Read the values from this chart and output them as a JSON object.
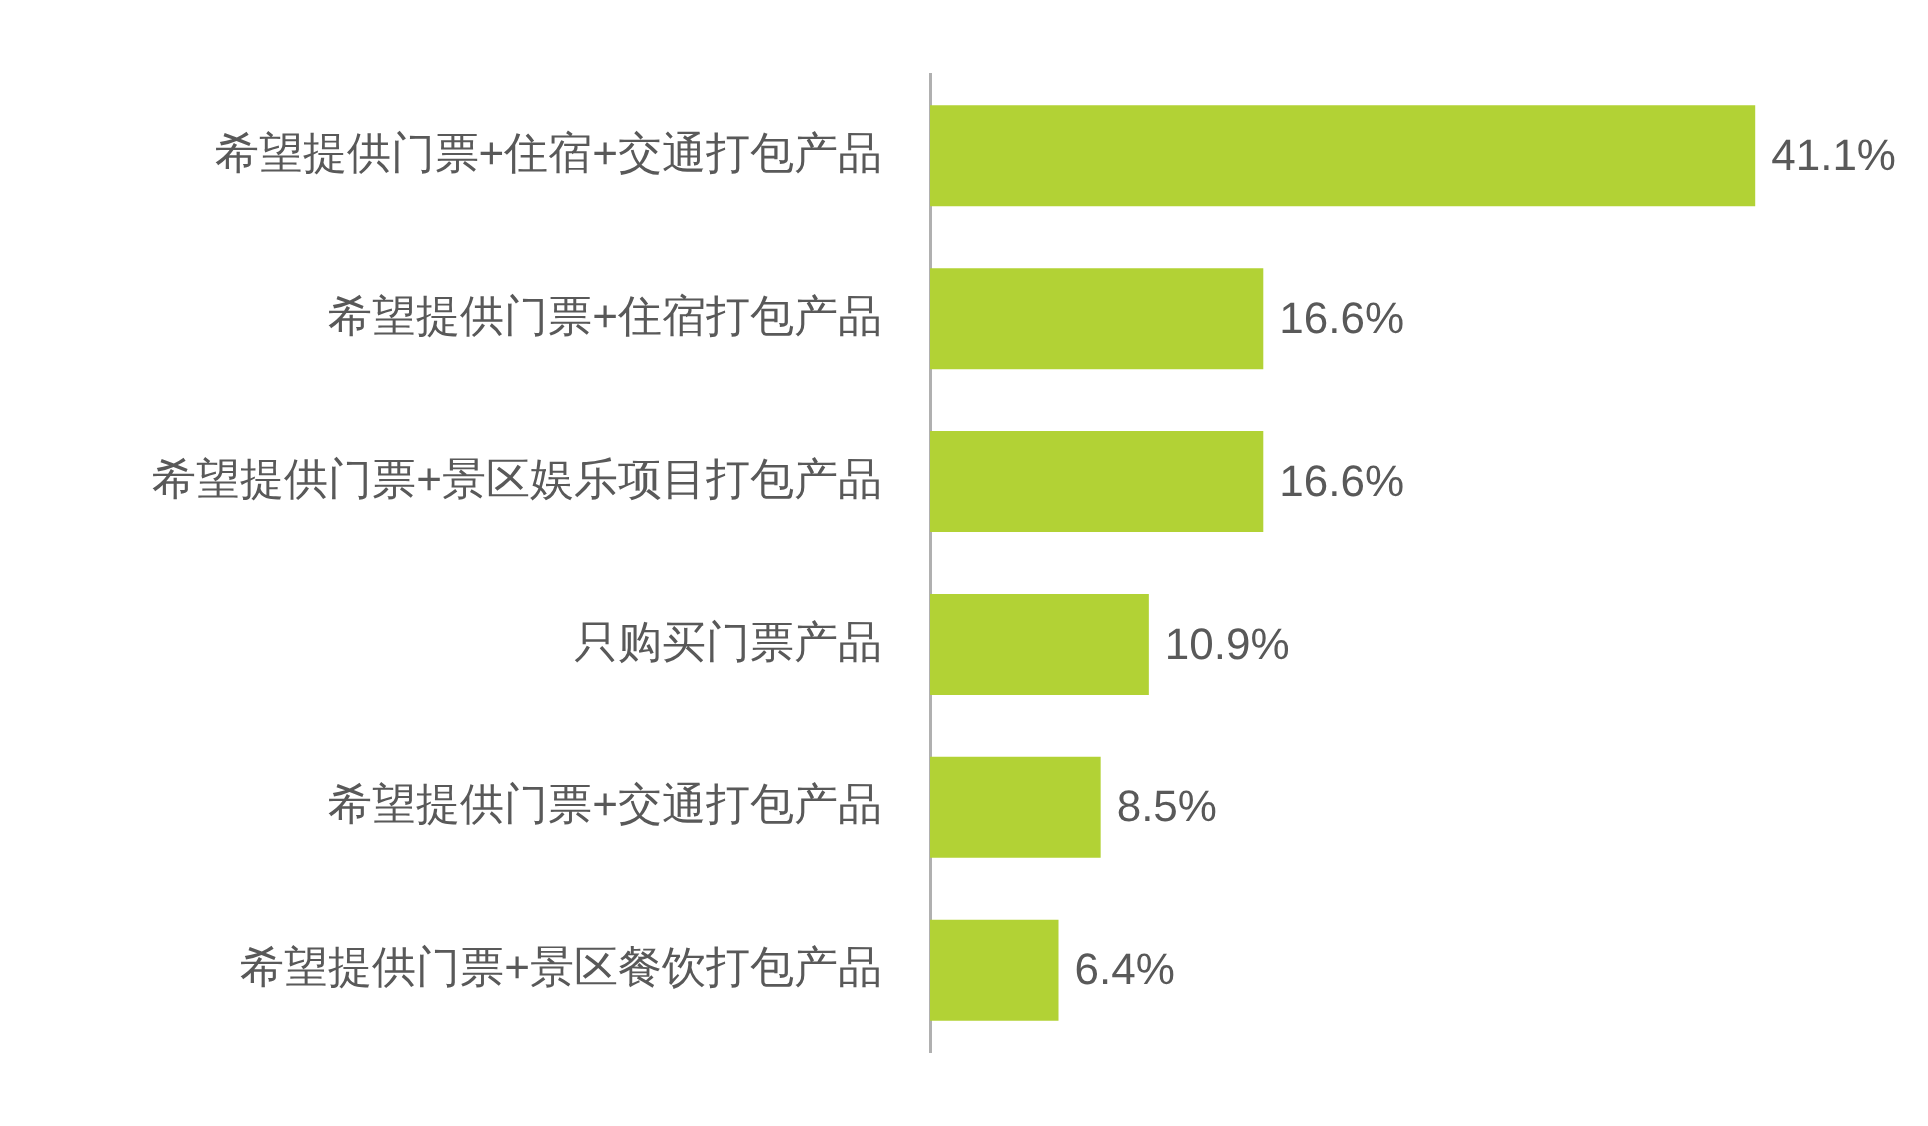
{
  "chart_data": {
    "type": "bar",
    "orientation": "horizontal",
    "categories": [
      "希望提供门票+住宿+交通打包产品",
      "希望提供门票+住宿打包产品",
      "希望提供门票+景区娱乐项目打包产品",
      "只购买门票产品",
      "希望提供门票+交通打包产品",
      "希望提供门票+景区餐饮打包产品"
    ],
    "values": [
      41.1,
      16.6,
      16.6,
      10.9,
      8.5,
      6.4
    ],
    "color": "#b2d235",
    "value_labels": [
      "41.1%",
      "16.6%",
      "16.6%",
      "10.9%",
      "8.5%",
      "6.4%"
    ],
    "tick_labels": "y"
  }
}
